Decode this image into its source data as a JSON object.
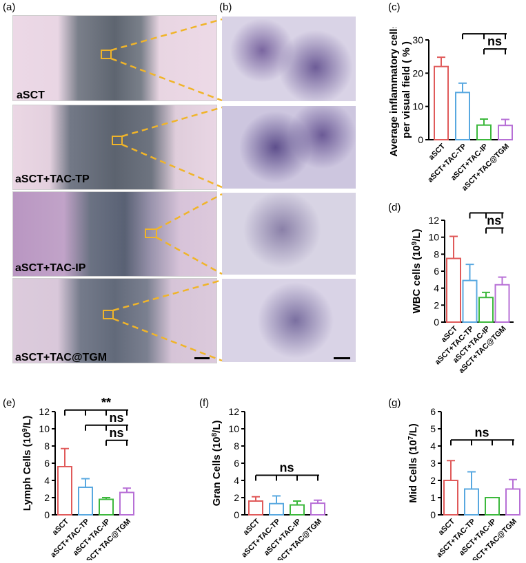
{
  "panel_letters": [
    "(a)",
    "(b)",
    "(c)",
    "(d)",
    "(e)",
    "(f)",
    "(g)"
  ],
  "groups": [
    "aSCT",
    "aSCT+TAC-TP",
    "aSCT+TAC-IP",
    "aSCT+TAC@TGM"
  ],
  "colors": {
    "aSCT": "#e05a5a",
    "aSCT+TAC-TP": "#58a8e0",
    "aSCT+TAC-IP": "#3cb83c",
    "aSCT+TAC@TGM": "#b76fd6",
    "highlight": "#f0b429"
  },
  "chart_data": [
    {
      "id": "c",
      "type": "bar",
      "categories": [
        "aSCT",
        "aSCT+TAC-TP",
        "aSCT+TAC-IP",
        "aSCT+TAC@TGM"
      ],
      "values": [
        22,
        14.2,
        4.4,
        4.3
      ],
      "errors": [
        2.8,
        2.8,
        1.8,
        1.8
      ],
      "ylim": [
        0,
        30
      ],
      "yticks": [
        0,
        10,
        20,
        30
      ],
      "ylabel_lines": [
        "Average inflammatory cells",
        "per visual field ( % )"
      ],
      "significance": [
        {
          "from": 0,
          "to": [
            1,
            2,
            3
          ],
          "label": "***"
        },
        {
          "from": 1,
          "to": [
            2,
            3
          ],
          "label": "**"
        },
        {
          "from": 2,
          "to": [
            3
          ],
          "label": "ns"
        }
      ]
    },
    {
      "id": "d",
      "type": "bar",
      "categories": [
        "aSCT",
        "aSCT+TAC-TP",
        "aSCT+TAC-IP",
        "aSCT+TAC@TGM"
      ],
      "values": [
        7.5,
        4.9,
        2.9,
        4.4
      ],
      "errors": [
        2.6,
        1.9,
        0.6,
        0.9
      ],
      "ylim": [
        0,
        12
      ],
      "yticks": [
        0,
        2,
        4,
        6,
        8,
        10,
        12
      ],
      "ylabel_lines": [
        "WBC cells (10^9/L)"
      ],
      "ylabel_main": "WBC cells (10",
      "ylabel_exp": "9",
      "ylabel_tail": "/L)",
      "significance": [
        {
          "from": 0,
          "to": [
            1,
            2,
            3
          ],
          "label": "**"
        },
        {
          "from": 1,
          "to": [
            2,
            3
          ],
          "label": "ns"
        },
        {
          "from": 2,
          "to": [
            3
          ],
          "label": "ns"
        }
      ]
    },
    {
      "id": "e",
      "type": "bar",
      "categories": [
        "aSCT",
        "aSCT+TAC-TP",
        "aSCT+TAC-IP",
        "aSCT+TAC@TGM"
      ],
      "values": [
        5.6,
        3.2,
        1.8,
        2.6
      ],
      "errors": [
        2.1,
        1.0,
        0.2,
        0.5
      ],
      "ylim": [
        0,
        12
      ],
      "yticks": [
        0,
        2,
        4,
        6,
        8,
        10,
        12
      ],
      "ylabel_main": "Lymph Cells (10",
      "ylabel_exp": "9",
      "ylabel_tail": "/L)",
      "significance": [
        {
          "from": 0,
          "to": [
            1,
            2,
            3
          ],
          "label": "**"
        },
        {
          "from": 1,
          "to": [
            2,
            3
          ],
          "label": "ns"
        },
        {
          "from": 2,
          "to": [
            3
          ],
          "label": "ns"
        }
      ]
    },
    {
      "id": "f",
      "type": "bar",
      "categories": [
        "aSCT",
        "aSCT+TAC-TP",
        "aSCT+TAC-IP",
        "aSCT+TAC@TGM"
      ],
      "values": [
        1.6,
        1.3,
        1.15,
        1.35
      ],
      "errors": [
        0.5,
        0.9,
        0.45,
        0.35
      ],
      "ylim": [
        0,
        12
      ],
      "yticks": [
        0,
        2,
        4,
        6,
        8,
        10,
        12
      ],
      "ylabel_main": "Gran Cells (10",
      "ylabel_exp": "8",
      "ylabel_tail": "/L)",
      "significance": [
        {
          "from": 0,
          "to": [
            1,
            2,
            3
          ],
          "label": "ns",
          "flat": true
        }
      ]
    },
    {
      "id": "g",
      "type": "bar",
      "categories": [
        "aSCT",
        "aSCT+TAC-TP",
        "aSCT+TAC-IP",
        "aSCT+TAC@TGM"
      ],
      "values": [
        2.0,
        1.5,
        1.0,
        1.5
      ],
      "errors": [
        1.15,
        1.0,
        0.0,
        0.55
      ],
      "ylim": [
        0,
        6
      ],
      "yticks": [
        0,
        1,
        2,
        3,
        4,
        5,
        6
      ],
      "ylabel_main": "Mid Cells (10",
      "ylabel_exp": "7",
      "ylabel_tail": "/L)",
      "significance": [
        {
          "from": 0,
          "to": [
            1,
            2,
            3
          ],
          "label": "ns",
          "flat": true
        }
      ]
    }
  ]
}
